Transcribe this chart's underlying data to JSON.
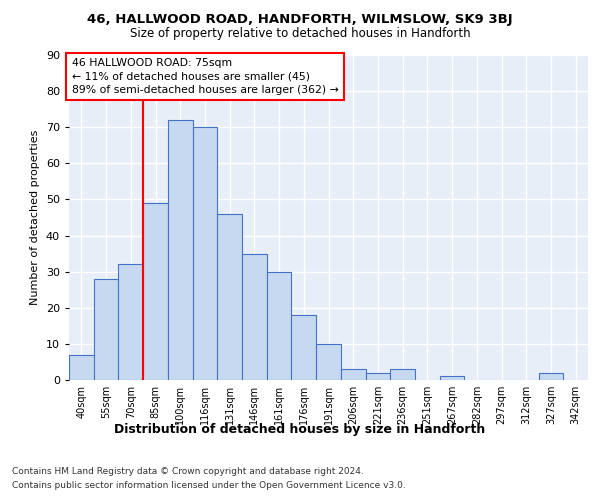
{
  "title_line1": "46, HALLWOOD ROAD, HANDFORTH, WILMSLOW, SK9 3BJ",
  "title_line2": "Size of property relative to detached houses in Handforth",
  "xlabel": "Distribution of detached houses by size in Handforth",
  "ylabel": "Number of detached properties",
  "bar_labels": [
    "40sqm",
    "55sqm",
    "70sqm",
    "85sqm",
    "100sqm",
    "116sqm",
    "131sqm",
    "146sqm",
    "161sqm",
    "176sqm",
    "191sqm",
    "206sqm",
    "221sqm",
    "236sqm",
    "251sqm",
    "267sqm",
    "282sqm",
    "297sqm",
    "312sqm",
    "327sqm",
    "342sqm"
  ],
  "bar_heights": [
    7,
    28,
    32,
    49,
    72,
    70,
    46,
    35,
    30,
    18,
    10,
    3,
    2,
    3,
    0,
    1,
    0,
    0,
    0,
    2,
    0
  ],
  "bar_color": "#c6d9f0",
  "bar_edge_color": "#4472c4",
  "red_line_x": 2.5,
  "annotation_text": "46 HALLWOOD ROAD: 75sqm\n← 11% of detached houses are smaller (45)\n89% of semi-detached houses are larger (362) →",
  "ylim_max": 90,
  "yticks": [
    0,
    10,
    20,
    30,
    40,
    50,
    60,
    70,
    80,
    90
  ],
  "footnote_line1": "Contains HM Land Registry data © Crown copyright and database right 2024.",
  "footnote_line2": "Contains public sector information licensed under the Open Government Licence v3.0.",
  "background_color": "#e8eef8",
  "grid_color": "#ffffff"
}
